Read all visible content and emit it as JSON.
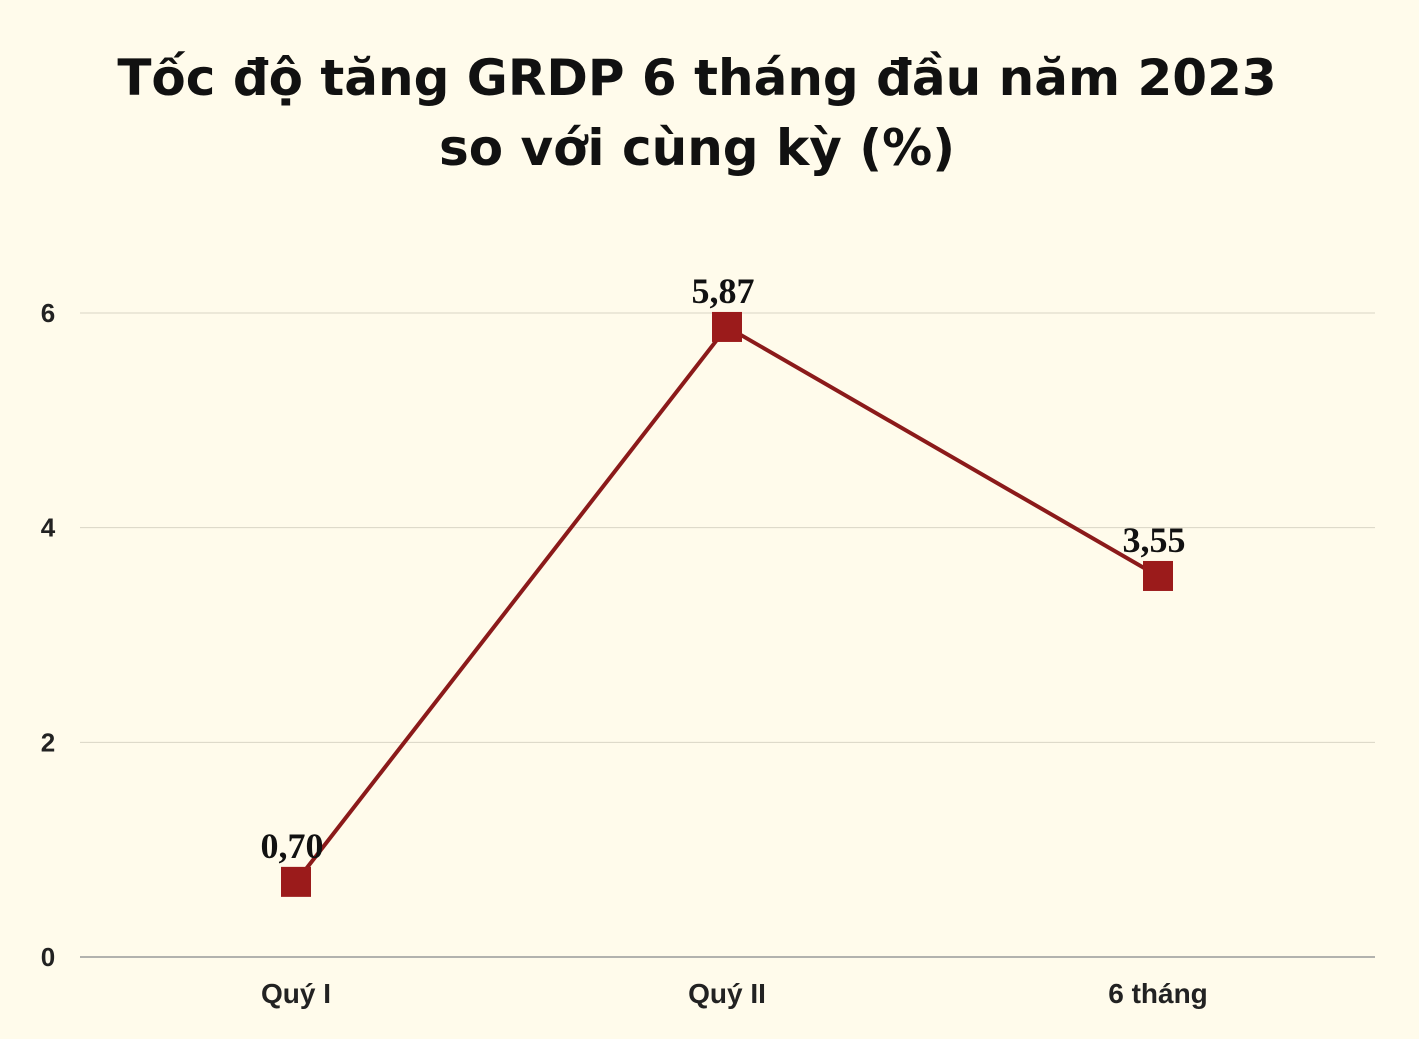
{
  "chart_data": {
    "type": "line",
    "title_lines": [
      "Tốc độ tăng GRDP 6 tháng đầu năm 2023",
      "so với cùng kỳ (%)"
    ],
    "categories": [
      "Quý I",
      "Quý II",
      "6 tháng"
    ],
    "series": [
      {
        "values": [
          0.7,
          5.87,
          3.55
        ],
        "labels": [
          "0,70",
          "5,87",
          "3,55"
        ]
      }
    ],
    "ylim": [
      0,
      6.5
    ],
    "yticks": [
      0,
      2,
      4,
      6
    ],
    "grid": true,
    "colors": {
      "line": "#8b1a1a",
      "marker": "#9b1b1b",
      "grid": "#d9d6c6",
      "axis": "#999999",
      "background": "#fffbeb"
    }
  }
}
